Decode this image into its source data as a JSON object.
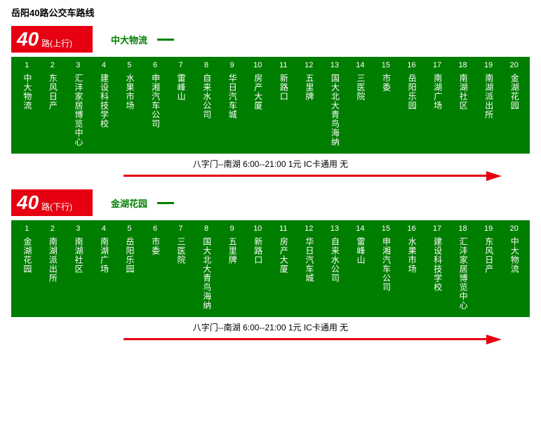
{
  "colors": {
    "brand_red": "#e60012",
    "brand_green": "#007e00",
    "text_green": "#008000",
    "background": "#ffffff",
    "text_black": "#000000",
    "text_white": "#ffffff"
  },
  "title": "岳阳40路公交车路线",
  "route_number": "40",
  "schedule_text": "八字门--南湖 6:00--21:00 1元 IC卡通用 无",
  "routes": [
    {
      "direction": "路(上行)",
      "terminus": "中大物流",
      "stops": [
        "中大物流",
        "东风日产",
        "汇沣家居博览中心",
        "建设科技学校",
        "水果市场",
        "申湘汽车公司",
        "雷峰山",
        "自来水公司",
        "华日汽车城",
        "房产大厦",
        "新路口",
        "五里牌",
        "国大北大青鸟海纳",
        "三医院",
        "市委",
        "岳阳乐园",
        "南湖广场",
        "南湖社区",
        "南湖派出所",
        "金湖花园"
      ]
    },
    {
      "direction": "路(下行)",
      "terminus": "金湖花园",
      "stops": [
        "金湖花园",
        "南湖派出所",
        "南湖社区",
        "南湖广场",
        "岳阳乐园",
        "市委",
        "三医院",
        "国大北大青鸟海纳",
        "五里牌",
        "新路口",
        "房产大厦",
        "华日汽车城",
        "自来水公司",
        "雷峰山",
        "申湘汽车公司",
        "水果市场",
        "建设科技学校",
        "汇沣家居博览中心",
        "东风日产",
        "中大物流"
      ]
    }
  ]
}
